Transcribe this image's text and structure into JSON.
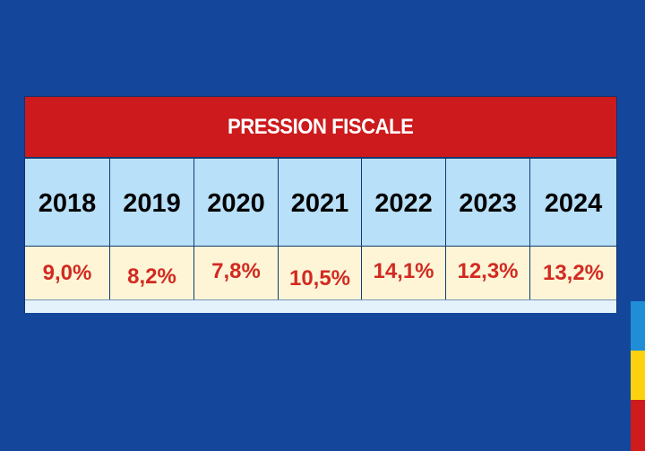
{
  "chart_data": {
    "type": "table",
    "title": "PRESSION FISCALE",
    "categories": [
      "2018",
      "2019",
      "2020",
      "2021",
      "2022",
      "2023",
      "2024"
    ],
    "values": [
      9.0,
      8.2,
      7.8,
      10.5,
      14.1,
      12.3,
      13.2
    ],
    "value_labels": [
      "9,0%",
      "8,2%",
      "7,8%",
      "10,5%",
      "14,1%",
      "12,3%",
      "13,2%"
    ]
  },
  "colors": {
    "background": "#14479b",
    "title_bar": "#cc1a1d",
    "year_row": "#b8e0f8",
    "value_row": "#fdf5d6",
    "value_text": "#d22a21",
    "flag_blue": "#1f8ed6",
    "flag_yellow": "#fcd20f",
    "flag_red": "#cf1b1c"
  }
}
